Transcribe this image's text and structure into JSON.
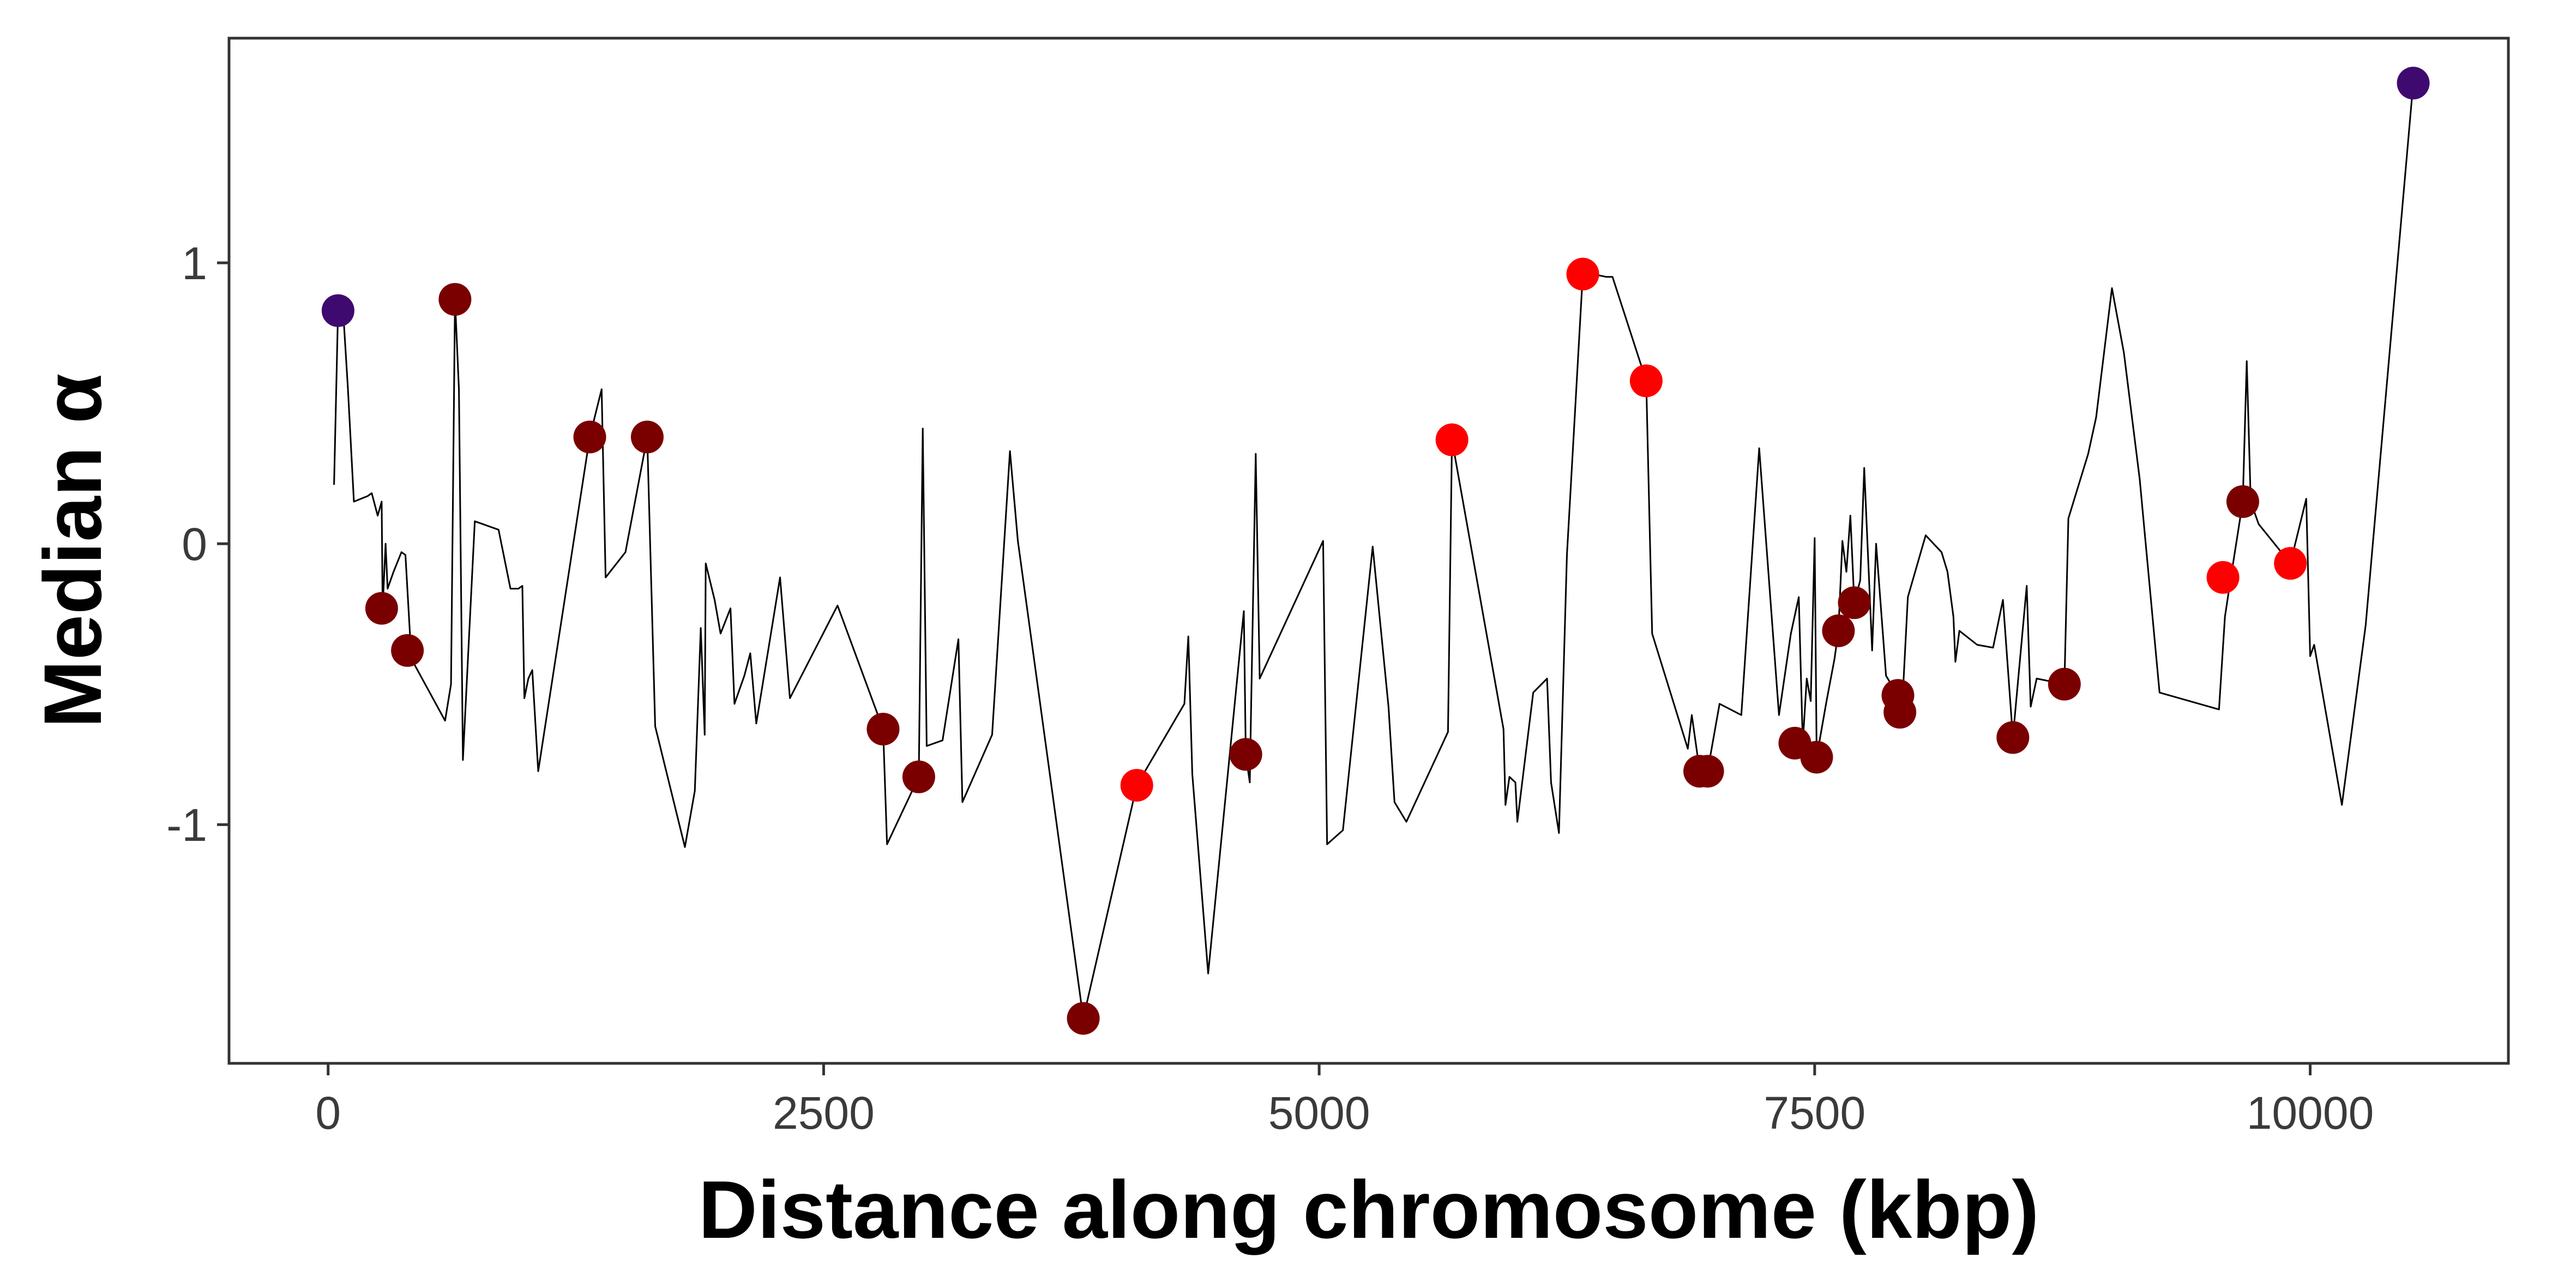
{
  "chart_data": {
    "type": "line",
    "title": "",
    "xlabel": "Distance along chromosome (kbp)",
    "ylabel": "Median α",
    "xlim": [
      -500,
      11000
    ],
    "ylim": [
      -1.85,
      1.8
    ],
    "x_ticks": [
      0,
      2500,
      5000,
      7500,
      10000
    ],
    "x_tick_labels": [
      "0",
      "2500",
      "5000",
      "7500",
      "10000"
    ],
    "y_ticks": [
      -1,
      0,
      1
    ],
    "y_tick_labels": [
      "-1",
      "0",
      "1"
    ],
    "grid": false,
    "legend": "none",
    "series": [
      {
        "style": "line",
        "color": "#000000",
        "points": [
          [
            30,
            0.21
          ],
          [
            50,
            0.83
          ],
          [
            80,
            0.78
          ],
          [
            100,
            0.55
          ],
          [
            130,
            0.15
          ],
          [
            200,
            0.17
          ],
          [
            220,
            0.18
          ],
          [
            250,
            0.1
          ],
          [
            270,
            0.15
          ],
          [
            275,
            -0.23
          ],
          [
            290,
            0.0
          ],
          [
            300,
            -0.16
          ],
          [
            330,
            -0.1
          ],
          [
            370,
            -0.03
          ],
          [
            390,
            -0.04
          ],
          [
            420,
            -0.41
          ],
          [
            590,
            -0.63
          ],
          [
            620,
            -0.5
          ],
          [
            640,
            0.87
          ],
          [
            660,
            0.55
          ],
          [
            680,
            -0.77
          ],
          [
            740,
            0.08
          ],
          [
            860,
            0.05
          ],
          [
            920,
            -0.16
          ],
          [
            960,
            -0.16
          ],
          [
            980,
            -0.15
          ],
          [
            990,
            -0.55
          ],
          [
            1010,
            -0.48
          ],
          [
            1030,
            -0.45
          ],
          [
            1060,
            -0.81
          ],
          [
            1320,
            0.38
          ],
          [
            1380,
            0.55
          ],
          [
            1400,
            -0.12
          ],
          [
            1500,
            -0.03
          ],
          [
            1610,
            0.38
          ],
          [
            1650,
            -0.65
          ],
          [
            1800,
            -1.08
          ],
          [
            1850,
            -0.88
          ],
          [
            1880,
            -0.3
          ],
          [
            1900,
            -0.68
          ],
          [
            1905,
            -0.07
          ],
          [
            1950,
            -0.2
          ],
          [
            1980,
            -0.32
          ],
          [
            2030,
            -0.23
          ],
          [
            2050,
            -0.57
          ],
          [
            2100,
            -0.47
          ],
          [
            2130,
            -0.39
          ],
          [
            2160,
            -0.64
          ],
          [
            2280,
            -0.12
          ],
          [
            2330,
            -0.55
          ],
          [
            2570,
            -0.22
          ],
          [
            2800,
            -0.66
          ],
          [
            2820,
            -1.07
          ],
          [
            2980,
            -0.83
          ],
          [
            3000,
            0.41
          ],
          [
            3020,
            -0.72
          ],
          [
            3100,
            -0.7
          ],
          [
            3180,
            -0.34
          ],
          [
            3200,
            -0.92
          ],
          [
            3350,
            -0.68
          ],
          [
            3440,
            0.33
          ],
          [
            3480,
            0.01
          ],
          [
            3810,
            -1.69
          ],
          [
            4080,
            -0.86
          ],
          [
            4320,
            -0.57
          ],
          [
            4340,
            -0.33
          ],
          [
            4360,
            -0.82
          ],
          [
            4440,
            -1.53
          ],
          [
            4620,
            -0.24
          ],
          [
            4630,
            -0.75
          ],
          [
            4650,
            -0.85
          ],
          [
            4660,
            -0.46
          ],
          [
            4680,
            0.32
          ],
          [
            4700,
            -0.48
          ],
          [
            5020,
            0.01
          ],
          [
            5040,
            -1.07
          ],
          [
            5120,
            -1.02
          ],
          [
            5270,
            -0.01
          ],
          [
            5350,
            -0.58
          ],
          [
            5380,
            -0.92
          ],
          [
            5440,
            -0.99
          ],
          [
            5650,
            -0.67
          ],
          [
            5670,
            0.37
          ],
          [
            5930,
            -0.66
          ],
          [
            5940,
            -0.93
          ],
          [
            5960,
            -0.83
          ],
          [
            5990,
            -0.85
          ],
          [
            6000,
            -0.99
          ],
          [
            6080,
            -0.53
          ],
          [
            6150,
            -0.48
          ],
          [
            6170,
            -0.85
          ],
          [
            6210,
            -1.03
          ],
          [
            6250,
            -0.04
          ],
          [
            6330,
            0.96
          ],
          [
            6380,
            0.96
          ],
          [
            6450,
            0.95
          ],
          [
            6480,
            0.95
          ],
          [
            6650,
            0.58
          ],
          [
            6680,
            -0.32
          ],
          [
            6860,
            -0.73
          ],
          [
            6880,
            -0.61
          ],
          [
            6920,
            -0.81
          ],
          [
            6960,
            -0.81
          ],
          [
            7020,
            -0.57
          ],
          [
            7130,
            -0.61
          ],
          [
            7220,
            0.34
          ],
          [
            7320,
            -0.61
          ],
          [
            7380,
            -0.32
          ],
          [
            7420,
            -0.19
          ],
          [
            7440,
            -0.71
          ],
          [
            7460,
            -0.48
          ],
          [
            7480,
            -0.56
          ],
          [
            7500,
            0.02
          ],
          [
            7510,
            -0.76
          ],
          [
            7560,
            -0.56
          ],
          [
            7600,
            -0.41
          ],
          [
            7620,
            -0.31
          ],
          [
            7640,
            0.01
          ],
          [
            7660,
            -0.1
          ],
          [
            7680,
            0.1
          ],
          [
            7700,
            -0.21
          ],
          [
            7730,
            -0.13
          ],
          [
            7750,
            0.27
          ],
          [
            7790,
            -0.38
          ],
          [
            7810,
            0.0
          ],
          [
            7860,
            -0.47
          ],
          [
            7920,
            -0.54
          ],
          [
            7940,
            -0.6
          ],
          [
            7970,
            -0.19
          ],
          [
            8060,
            0.03
          ],
          [
            8140,
            -0.03
          ],
          [
            8170,
            -0.1
          ],
          [
            8200,
            -0.26
          ],
          [
            8210,
            -0.42
          ],
          [
            8230,
            -0.31
          ],
          [
            8320,
            -0.36
          ],
          [
            8400,
            -0.37
          ],
          [
            8450,
            -0.2
          ],
          [
            8500,
            -0.69
          ],
          [
            8570,
            -0.15
          ],
          [
            8590,
            -0.58
          ],
          [
            8620,
            -0.48
          ],
          [
            8760,
            -0.5
          ],
          [
            8780,
            0.09
          ],
          [
            8880,
            0.32
          ],
          [
            8920,
            0.45
          ],
          [
            9000,
            0.91
          ],
          [
            9060,
            0.68
          ],
          [
            9140,
            0.23
          ],
          [
            9240,
            -0.53
          ],
          [
            9540,
            -0.59
          ],
          [
            9570,
            -0.26
          ],
          [
            9600,
            -0.12
          ],
          [
            9660,
            0.15
          ],
          [
            9680,
            0.65
          ],
          [
            9700,
            0.15
          ],
          [
            9740,
            0.07
          ],
          [
            9900,
            -0.07
          ],
          [
            9980,
            0.16
          ],
          [
            10000,
            -0.4
          ],
          [
            10020,
            -0.36
          ],
          [
            10160,
            -0.93
          ],
          [
            10280,
            -0.29
          ],
          [
            10520,
            1.64
          ]
        ]
      },
      {
        "name": "",
        "style": "points",
        "points": [
          {
            "x": 50,
            "y": 0.83,
            "color": "#3f0a6f"
          },
          {
            "x": 270,
            "y": -0.23,
            "color": "#7a0000"
          },
          {
            "x": 400,
            "y": -0.38,
            "color": "#7a0000"
          },
          {
            "x": 640,
            "y": 0.87,
            "color": "#7a0000"
          },
          {
            "x": 1320,
            "y": 0.38,
            "color": "#7a0000"
          },
          {
            "x": 1610,
            "y": 0.38,
            "color": "#7a0000"
          },
          {
            "x": 2800,
            "y": -0.66,
            "color": "#7a0000"
          },
          {
            "x": 2980,
            "y": -0.83,
            "color": "#7a0000"
          },
          {
            "x": 3810,
            "y": -1.69,
            "color": "#7a0000"
          },
          {
            "x": 4080,
            "y": -0.86,
            "color": "#ff0000"
          },
          {
            "x": 4630,
            "y": -0.75,
            "color": "#7a0000"
          },
          {
            "x": 5670,
            "y": 0.37,
            "color": "#ff0000"
          },
          {
            "x": 6330,
            "y": 0.96,
            "color": "#ff0000"
          },
          {
            "x": 6650,
            "y": 0.58,
            "color": "#ff0000"
          },
          {
            "x": 6920,
            "y": -0.81,
            "color": "#7a0000"
          },
          {
            "x": 6960,
            "y": -0.81,
            "color": "#7a0000"
          },
          {
            "x": 7400,
            "y": -0.71,
            "color": "#7a0000"
          },
          {
            "x": 7510,
            "y": -0.76,
            "color": "#7a0000"
          },
          {
            "x": 7620,
            "y": -0.31,
            "color": "#7a0000"
          },
          {
            "x": 7700,
            "y": -0.21,
            "color": "#7a0000"
          },
          {
            "x": 7920,
            "y": -0.54,
            "color": "#7a0000"
          },
          {
            "x": 7930,
            "y": -0.6,
            "color": "#7a0000"
          },
          {
            "x": 8500,
            "y": -0.69,
            "color": "#7a0000"
          },
          {
            "x": 8760,
            "y": -0.5,
            "color": "#7a0000"
          },
          {
            "x": 9560,
            "y": -0.12,
            "color": "#ff0000"
          },
          {
            "x": 9660,
            "y": 0.15,
            "color": "#7a0000"
          },
          {
            "x": 9900,
            "y": -0.07,
            "color": "#ff0000"
          },
          {
            "x": 10520,
            "y": 1.64,
            "color": "#3f0a6f"
          }
        ]
      }
    ]
  }
}
